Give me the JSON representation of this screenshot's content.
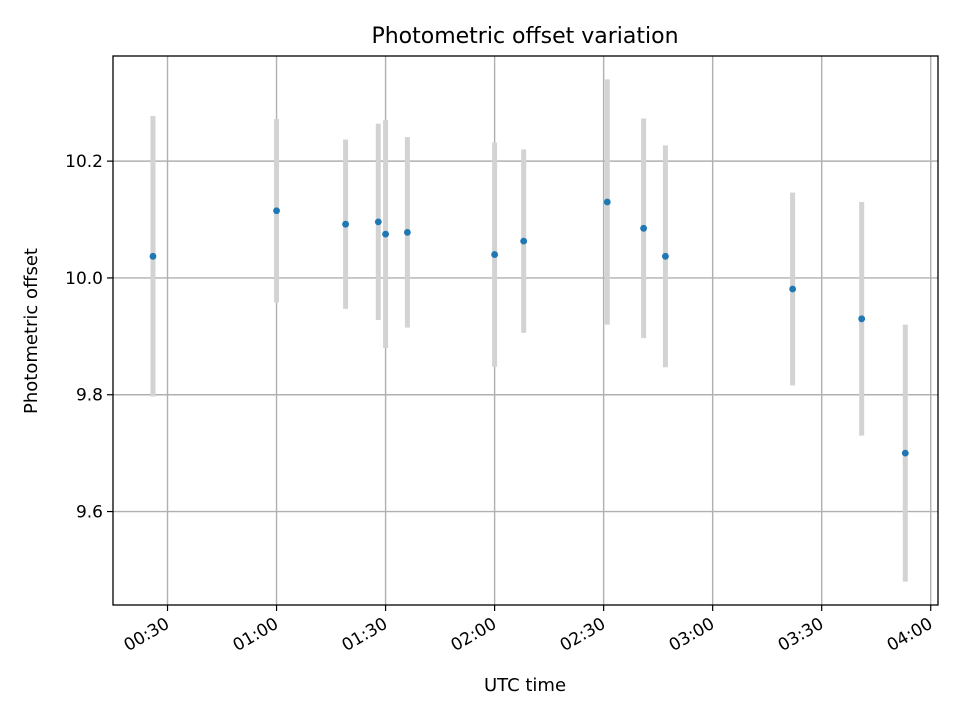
{
  "chart_data": {
    "type": "scatter",
    "title": "Photometric offset variation",
    "xlabel": "UTC time",
    "ylabel": "Photometric offset",
    "x_unit": "UTC time (HH:MM)",
    "xlim": [
      "00:15",
      "04:02"
    ],
    "ylim": [
      9.44,
      10.38
    ],
    "x_ticks": [
      "00:30",
      "01:00",
      "01:30",
      "02:00",
      "02:30",
      "03:00",
      "03:30",
      "04:00"
    ],
    "y_ticks": [
      9.6,
      9.8,
      10.0,
      10.2
    ],
    "y_tick_labels": [
      "9.6",
      "9.8",
      "10.0",
      "10.2"
    ],
    "grid": true,
    "x_tick_rotation": "30 degrees",
    "colors": {
      "point": "#1f77b4",
      "errorbar": "#d3d3d3",
      "grid": "#b0b0b0"
    },
    "series": [
      {
        "points": [
          {
            "x": "00:26",
            "y": 10.037,
            "err": 0.24
          },
          {
            "x": "01:00",
            "y": 10.115,
            "err": 0.157
          },
          {
            "x": "01:19",
            "y": 10.092,
            "err": 0.145
          },
          {
            "x": "01:28",
            "y": 10.096,
            "err": 0.168
          },
          {
            "x": "01:30",
            "y": 10.075,
            "err": 0.195
          },
          {
            "x": "01:36",
            "y": 10.078,
            "err": 0.163
          },
          {
            "x": "02:00",
            "y": 10.04,
            "err": 0.192
          },
          {
            "x": "02:08",
            "y": 10.063,
            "err": 0.157
          },
          {
            "x": "02:31",
            "y": 10.13,
            "err": 0.21
          },
          {
            "x": "02:41",
            "y": 10.085,
            "err": 0.188
          },
          {
            "x": "02:47",
            "y": 10.037,
            "err": 0.19
          },
          {
            "x": "03:22",
            "y": 9.981,
            "err": 0.165
          },
          {
            "x": "03:41",
            "y": 9.93,
            "err": 0.2
          },
          {
            "x": "03:53",
            "y": 9.7,
            "err": 0.22
          }
        ]
      }
    ]
  }
}
